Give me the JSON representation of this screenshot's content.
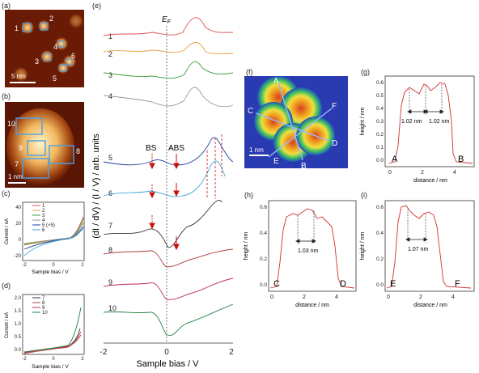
{
  "panels": {
    "a": {
      "label": "(a)",
      "scale_bar": "5 nm",
      "markers": [
        "1",
        "2",
        "3",
        "4",
        "5",
        "6"
      ]
    },
    "b": {
      "label": "(b)",
      "scale_bar": "1 nm",
      "markers": [
        "10",
        "9",
        "8",
        "7"
      ]
    },
    "c": {
      "label": "(c)",
      "ylabel": "Current / nA",
      "xlabel": "Sample bias / V",
      "yticks": [
        "40",
        "20",
        "0",
        "-20"
      ],
      "xticks": [
        "-2",
        "0",
        "2"
      ],
      "legend": [
        "1",
        "2",
        "3",
        "4",
        "5 (×5)",
        "6"
      ]
    },
    "d": {
      "label": "(d)",
      "ylabel": "Current / nA",
      "xlabel": "Sample bias / V",
      "yticks": [
        "2.0",
        "1.5",
        "1.0",
        "0.5",
        "0.0"
      ],
      "xticks": [
        "-2",
        "0",
        "2"
      ],
      "legend": [
        "7",
        "8",
        "9",
        "10"
      ]
    },
    "e": {
      "label": "(e)",
      "ylabel": "(dI / dV) / (I / V) / arb. units",
      "xlabel": "Sample bias / V",
      "xticks": [
        "-2",
        "0",
        "2"
      ],
      "ef_label": "E",
      "ef_sub": "F",
      "bs_label": "BS",
      "abs_label": "ABS",
      "curve_labels": [
        "1",
        "2",
        "3",
        "4",
        "5",
        "6",
        "7",
        "8",
        "9",
        "10"
      ]
    },
    "f": {
      "label": "(f)",
      "scale_bar": "1 nm",
      "points": [
        "A",
        "C",
        "F",
        "D",
        "E",
        "B"
      ]
    },
    "g": {
      "label": "(g)",
      "ylabel": "height / nm",
      "xlabel": "distance / nm",
      "yticks": [
        "0.6",
        "0.5",
        "0.4",
        "0.3",
        "0.2",
        "0.1",
        "0.0"
      ],
      "xticks": [
        "0",
        "2",
        "4"
      ],
      "ann1": "1.02 nm",
      "ann2": "1.02 nm",
      "start": "A",
      "end": "B"
    },
    "h": {
      "label": "(h)",
      "ylabel": "height / nm",
      "xlabel": "distance / nm",
      "yticks": [
        "0.6",
        "0.4",
        "0.2",
        "0.0"
      ],
      "xticks": [
        "0",
        "2",
        "4"
      ],
      "ann": "1.03 nm",
      "start": "C",
      "end": "D"
    },
    "i": {
      "label": "(i)",
      "ylabel": "height / nm",
      "xlabel": "distance / nm",
      "yticks": [
        "0.6",
        "0.4",
        "0.2",
        "0.0"
      ],
      "xticks": [
        "0",
        "2",
        "4"
      ],
      "ann": "1.07 nm",
      "start": "E",
      "end": "F"
    }
  },
  "colors": {
    "c1": "#e05050",
    "c2": "#e8a040",
    "c3": "#3aa040",
    "c4": "#999999",
    "c5": "#2040a0",
    "c6": "#40a8d8",
    "c7": "#333333",
    "c8": "#b04040",
    "c9": "#c03050",
    "c10": "#208040",
    "profile": "#d03030",
    "arrow": "#cc1010"
  }
}
